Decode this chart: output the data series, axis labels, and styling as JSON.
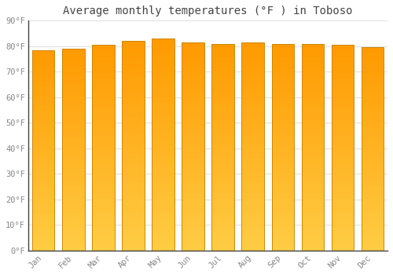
{
  "title": "Average monthly temperatures (°F ) in Toboso",
  "months": [
    "Jan",
    "Feb",
    "Mar",
    "Apr",
    "May",
    "Jun",
    "Jul",
    "Aug",
    "Sep",
    "Oct",
    "Nov",
    "Dec"
  ],
  "values": [
    78.5,
    79.0,
    80.5,
    82.0,
    83.0,
    81.5,
    81.0,
    81.5,
    81.0,
    81.0,
    80.5,
    79.5
  ],
  "bar_color_top": "#FFA500",
  "bar_color_bottom": "#FFCC44",
  "edge_color": "#CC8800",
  "ylim": [
    0,
    90
  ],
  "yticks": [
    0,
    10,
    20,
    30,
    40,
    50,
    60,
    70,
    80,
    90
  ],
  "ytick_labels": [
    "0°F",
    "10°F",
    "20°F",
    "30°F",
    "40°F",
    "50°F",
    "60°F",
    "70°F",
    "80°F",
    "90°F"
  ],
  "background_color": "#FFFFFF",
  "grid_color": "#E0E0E0",
  "title_fontsize": 10,
  "tick_fontsize": 7.5,
  "title_color": "#444444",
  "tick_color": "#888888",
  "bar_width": 0.75
}
